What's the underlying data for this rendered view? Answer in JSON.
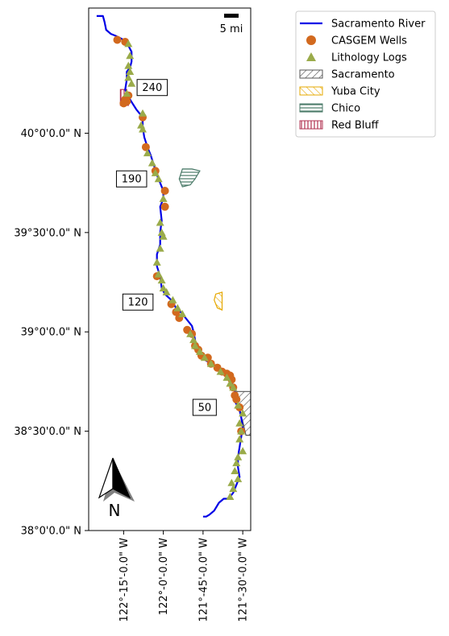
{
  "map": {
    "scale_bar_label": "5 mi",
    "north_label": "N",
    "y_ticks": [
      {
        "lat": 40.0,
        "label": "40°0'0.0\" N"
      },
      {
        "lat": 39.5,
        "label": "39°30'0.0\" N"
      },
      {
        "lat": 39.0,
        "label": "39°0'0.0\" N"
      },
      {
        "lat": 38.5,
        "label": "38°30'0.0\" N"
      },
      {
        "lat": 38.0,
        "label": "38°0'0.0\" N"
      }
    ],
    "x_ticks": [
      {
        "lon": -122.25,
        "label": "122°-15'-0.0\" W"
      },
      {
        "lon": -122.0,
        "label": "122°-0'-0.0\" W"
      },
      {
        "lon": -121.75,
        "label": "121°-45'-0.0\" W"
      },
      {
        "lon": -121.5,
        "label": "121°-30'-0.0\" W"
      }
    ],
    "xlim": [
      -122.47,
      -121.45
    ],
    "ylim": [
      38.0,
      40.63
    ],
    "river_mile_labels": [
      {
        "label": "240",
        "lon": -122.07,
        "lat": 40.23
      },
      {
        "label": "190",
        "lon": -122.2,
        "lat": 39.77
      },
      {
        "label": "120",
        "lon": -122.16,
        "lat": 39.15
      },
      {
        "label": "50",
        "lon": -121.74,
        "lat": 38.62
      }
    ],
    "colors": {
      "river": "#0000e6",
      "wells": "#d2691e",
      "logs": "#9aab4a",
      "sacramento": "#555555",
      "yuba_city": "#e6a800",
      "chico": "#4a7a68",
      "red_bluff": "#b03050"
    },
    "legend": [
      {
        "label": "Sacramento River",
        "symbol": "line",
        "color_key": "river"
      },
      {
        "label": "CASGEM Wells",
        "symbol": "circle",
        "color_key": "wells"
      },
      {
        "label": "Lithology Logs",
        "symbol": "triangle",
        "color_key": "logs"
      },
      {
        "label": "Sacramento",
        "symbol": "hatch",
        "color_key": "sacramento"
      },
      {
        "label": "Yuba City",
        "symbol": "hatch",
        "color_key": "yuba_city"
      },
      {
        "label": "Chico",
        "symbol": "hatch",
        "color_key": "chico"
      },
      {
        "label": "Red Bluff",
        "symbol": "hatch",
        "color_key": "red_bluff"
      }
    ],
    "river_path": [
      [
        -122.42,
        40.59
      ],
      [
        -122.38,
        40.59
      ],
      [
        -122.37,
        40.56
      ],
      [
        -122.36,
        40.52
      ],
      [
        -122.33,
        40.5
      ],
      [
        -122.3,
        40.49
      ],
      [
        -122.25,
        40.47
      ],
      [
        -122.22,
        40.44
      ],
      [
        -122.2,
        40.41
      ],
      [
        -122.2,
        40.36
      ],
      [
        -122.21,
        40.33
      ],
      [
        -122.23,
        40.31
      ],
      [
        -122.23,
        40.27
      ],
      [
        -122.24,
        40.22
      ],
      [
        -122.21,
        40.17
      ],
      [
        -122.17,
        40.12
      ],
      [
        -122.13,
        40.08
      ],
      [
        -122.13,
        40.03
      ],
      [
        -122.12,
        39.98
      ],
      [
        -122.1,
        39.93
      ],
      [
        -122.08,
        39.89
      ],
      [
        -122.06,
        39.84
      ],
      [
        -122.04,
        39.79
      ],
      [
        -122.02,
        39.75
      ],
      [
        -122.0,
        39.71
      ],
      [
        -122.0,
        39.67
      ],
      [
        -122.02,
        39.63
      ],
      [
        -122.01,
        39.56
      ],
      [
        -122.02,
        39.5
      ],
      [
        -122.02,
        39.44
      ],
      [
        -122.04,
        39.39
      ],
      [
        -122.04,
        39.33
      ],
      [
        -122.02,
        39.28
      ],
      [
        -122.01,
        39.22
      ],
      [
        -121.99,
        39.19
      ],
      [
        -121.95,
        39.16
      ],
      [
        -121.92,
        39.12
      ],
      [
        -121.88,
        39.09
      ],
      [
        -121.85,
        39.06
      ],
      [
        -121.82,
        39.03
      ],
      [
        -121.81,
        39.0
      ],
      [
        -121.8,
        38.96
      ],
      [
        -121.8,
        38.92
      ],
      [
        -121.77,
        38.89
      ],
      [
        -121.74,
        38.86
      ],
      [
        -121.7,
        38.84
      ],
      [
        -121.66,
        38.82
      ],
      [
        -121.62,
        38.79
      ],
      [
        -121.58,
        38.76
      ],
      [
        -121.55,
        38.71
      ],
      [
        -121.55,
        38.65
      ],
      [
        -121.52,
        38.61
      ],
      [
        -121.51,
        38.57
      ],
      [
        -121.5,
        38.52
      ],
      [
        -121.51,
        38.47
      ],
      [
        -121.52,
        38.42
      ],
      [
        -121.53,
        38.37
      ],
      [
        -121.53,
        38.32
      ],
      [
        -121.52,
        38.27
      ],
      [
        -121.54,
        38.23
      ],
      [
        -121.56,
        38.19
      ],
      [
        -121.59,
        38.16
      ],
      [
        -121.62,
        38.16
      ],
      [
        -121.65,
        38.14
      ],
      [
        -121.68,
        38.1
      ],
      [
        -121.71,
        38.08
      ],
      [
        -121.73,
        38.07
      ],
      [
        -121.75,
        38.07
      ]
    ],
    "wells": [
      [
        -122.29,
        40.47
      ],
      [
        -122.24,
        40.46
      ],
      [
        -122.22,
        40.19
      ],
      [
        -122.24,
        40.17
      ],
      [
        -122.23,
        40.16
      ],
      [
        -122.25,
        40.15
      ],
      [
        -122.13,
        40.08
      ],
      [
        -122.11,
        39.93
      ],
      [
        -122.05,
        39.81
      ],
      [
        -121.99,
        39.71
      ],
      [
        -121.99,
        39.63
      ],
      [
        -122.04,
        39.28
      ],
      [
        -121.95,
        39.14
      ],
      [
        -121.92,
        39.1
      ],
      [
        -121.9,
        39.07
      ],
      [
        -121.85,
        39.01
      ],
      [
        -121.82,
        38.99
      ],
      [
        -121.8,
        38.93
      ],
      [
        -121.78,
        38.91
      ],
      [
        -121.76,
        38.88
      ],
      [
        -121.72,
        38.87
      ],
      [
        -121.7,
        38.84
      ],
      [
        -121.66,
        38.82
      ],
      [
        -121.63,
        38.8
      ],
      [
        -121.6,
        38.79
      ],
      [
        -121.58,
        38.78
      ],
      [
        -121.57,
        38.76
      ],
      [
        -121.56,
        38.72
      ],
      [
        -121.55,
        38.68
      ],
      [
        -121.54,
        38.66
      ],
      [
        -121.52,
        38.62
      ],
      [
        -121.51,
        38.5
      ]
    ],
    "logs": [
      [
        -122.22,
        40.45
      ],
      [
        -122.21,
        40.39
      ],
      [
        -122.22,
        40.34
      ],
      [
        -122.21,
        40.31
      ],
      [
        -122.22,
        40.28
      ],
      [
        -122.2,
        40.25
      ],
      [
        -122.23,
        40.2
      ],
      [
        -122.13,
        40.1
      ],
      [
        -122.14,
        40.04
      ],
      [
        -122.13,
        40.02
      ],
      [
        -122.1,
        39.9
      ],
      [
        -122.07,
        39.85
      ],
      [
        -122.05,
        39.8
      ],
      [
        -122.03,
        39.77
      ],
      [
        -122.0,
        39.67
      ],
      [
        -122.02,
        39.55
      ],
      [
        -122.01,
        39.5
      ],
      [
        -122.0,
        39.48
      ],
      [
        -122.02,
        39.42
      ],
      [
        -122.04,
        39.35
      ],
      [
        -122.03,
        39.29
      ],
      [
        -122.01,
        39.26
      ],
      [
        -122.0,
        39.22
      ],
      [
        -121.98,
        39.2
      ],
      [
        -121.94,
        39.16
      ],
      [
        -121.91,
        39.12
      ],
      [
        -121.88,
        39.09
      ],
      [
        -121.83,
        38.99
      ],
      [
        -121.81,
        38.96
      ],
      [
        -121.8,
        38.93
      ],
      [
        -121.77,
        38.9
      ],
      [
        -121.74,
        38.87
      ],
      [
        -121.7,
        38.84
      ],
      [
        -121.64,
        38.8
      ],
      [
        -121.6,
        38.77
      ],
      [
        -121.58,
        38.74
      ],
      [
        -121.56,
        38.72
      ],
      [
        -121.53,
        38.63
      ],
      [
        -121.5,
        38.59
      ],
      [
        -121.52,
        38.54
      ],
      [
        -121.51,
        38.5
      ],
      [
        -121.52,
        38.46
      ],
      [
        -121.5,
        38.4
      ],
      [
        -121.53,
        38.37
      ],
      [
        -121.54,
        38.34
      ],
      [
        -121.55,
        38.3
      ],
      [
        -121.53,
        38.26
      ],
      [
        -121.57,
        38.24
      ],
      [
        -121.56,
        38.21
      ],
      [
        -121.58,
        38.17
      ]
    ],
    "cities": {
      "sacramento": [
        [
          -121.55,
          38.7
        ],
        [
          -121.45,
          38.7
        ],
        [
          -121.45,
          38.48
        ],
        [
          -121.48,
          38.48
        ],
        [
          -121.5,
          38.55
        ],
        [
          -121.53,
          38.62
        ],
        [
          -121.55,
          38.66
        ]
      ],
      "yuba_city": [
        [
          -121.67,
          39.19
        ],
        [
          -121.63,
          39.2
        ],
        [
          -121.63,
          39.11
        ],
        [
          -121.66,
          39.12
        ],
        [
          -121.68,
          39.16
        ]
      ],
      "chico": [
        [
          -121.88,
          39.82
        ],
        [
          -121.82,
          39.82
        ],
        [
          -121.77,
          39.81
        ],
        [
          -121.8,
          39.77
        ],
        [
          -121.83,
          39.74
        ],
        [
          -121.88,
          39.73
        ],
        [
          -121.9,
          39.77
        ]
      ],
      "red_bluff": [
        [
          -122.27,
          40.22
        ],
        [
          -122.23,
          40.22
        ],
        [
          -122.22,
          40.14
        ],
        [
          -122.27,
          40.14
        ]
      ]
    }
  }
}
